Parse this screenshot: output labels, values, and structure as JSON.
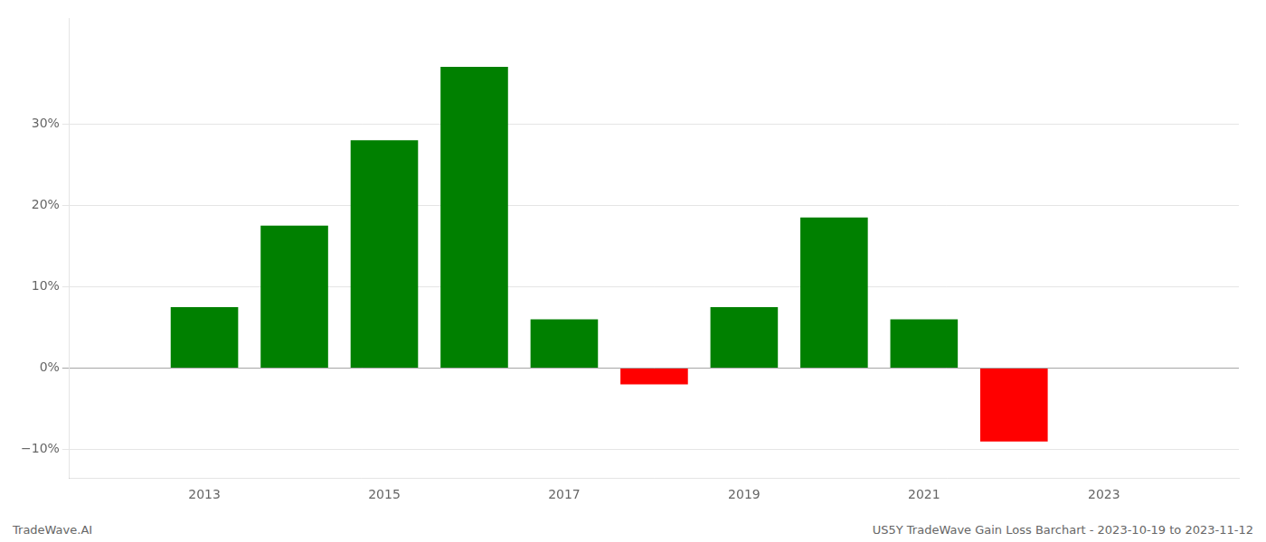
{
  "chart_data": {
    "type": "bar",
    "x": [
      2013,
      2014,
      2015,
      2016,
      2017,
      2018,
      2019,
      2020,
      2021,
      2022
    ],
    "values": [
      0.075,
      0.175,
      0.28,
      0.37,
      0.06,
      -0.02,
      0.075,
      0.185,
      0.06,
      -0.09
    ],
    "colors": [
      "#008000",
      "#008000",
      "#008000",
      "#008000",
      "#008000",
      "#ff0000",
      "#008000",
      "#008000",
      "#008000",
      "#ff0000"
    ],
    "xlim": [
      2011.5,
      2024.5
    ],
    "xticks": [
      2013,
      2015,
      2017,
      2019,
      2021,
      2023
    ],
    "ylim": [
      -0.135,
      0.43
    ],
    "yticks": [
      {
        "value": -0.1,
        "label": "−10%"
      },
      {
        "value": 0.0,
        "label": "0%"
      },
      {
        "value": 0.1,
        "label": "10%"
      },
      {
        "value": 0.2,
        "label": "20%"
      },
      {
        "value": 0.3,
        "label": "30%"
      }
    ],
    "grid": "y",
    "annotations": [
      "TradeWave.AI",
      "US5Y TradeWave Gain Loss Barchart - 2023-10-19 to 2023-11-12"
    ]
  }
}
